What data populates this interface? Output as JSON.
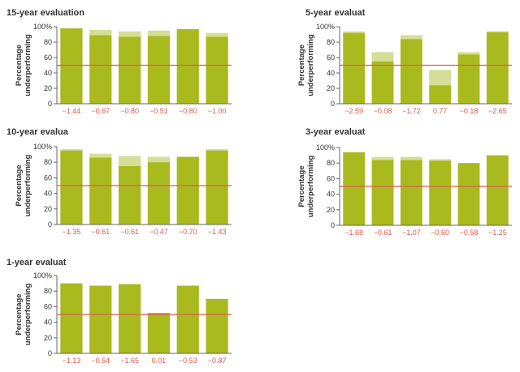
{
  "colors": {
    "bar_primary": "#a9ba1e",
    "bar_secondary": "#d4de96",
    "reference_line": "#e8574a",
    "axis": "#666666",
    "x_tick_text": "#e05a4e"
  },
  "chart_data": [
    {
      "type": "bar",
      "title": "15-year evaluation",
      "ylabel": "Percentage underperforming",
      "ylim": [
        0,
        100
      ],
      "y_ticks": [
        "0",
        "20",
        "40",
        "60",
        "80",
        "100%"
      ],
      "categories": [
        "−1.44",
        "−0.67",
        "−0.80",
        "−0.51",
        "−0.80",
        "−1.00"
      ],
      "series": [
        {
          "values": [
            98,
            89,
            87,
            88,
            97,
            87
          ]
        },
        {
          "values": [
            98,
            96,
            94,
            95,
            97,
            92
          ]
        }
      ],
      "reference_line": 50,
      "grid": false
    },
    {
      "type": "bar",
      "title": "5-year evaluat",
      "ylabel": "Percentage underperforming",
      "ylim": [
        0,
        100
      ],
      "y_ticks": [
        "0",
        "20",
        "40",
        "60",
        "80",
        "100%"
      ],
      "categories": [
        "−2.59",
        "−0.08",
        "−1.72",
        "0.77",
        "−0.18",
        "−2.65"
      ],
      "series": [
        {
          "values": [
            92,
            55,
            84,
            24,
            64,
            93
          ]
        },
        {
          "values": [
            94,
            67,
            89,
            44,
            67,
            94
          ]
        }
      ],
      "reference_line": 50,
      "grid": false
    },
    {
      "type": "bar",
      "title": "10-year evalua",
      "ylabel": "Percentage underperforming",
      "ylim": [
        0,
        100
      ],
      "y_ticks": [
        "0",
        "20",
        "40",
        "60",
        "80",
        "100%"
      ],
      "categories": [
        "−1.35",
        "−0.61",
        "−0.61",
        "−0.47",
        "−0.70",
        "−1.43"
      ],
      "series": [
        {
          "values": [
            95,
            86,
            75,
            80,
            87,
            95
          ]
        },
        {
          "values": [
            97,
            91,
            88,
            87,
            87,
            97
          ]
        }
      ],
      "reference_line": 50,
      "grid": false
    },
    {
      "type": "bar",
      "title": "3-year evaluat",
      "ylabel": "Percentage underperforming",
      "ylim": [
        0,
        100
      ],
      "y_ticks": [
        "0",
        "20",
        "40",
        "60",
        "80",
        "100%"
      ],
      "categories": [
        "−1.68",
        "−0.61",
        "−1.07",
        "−0.60",
        "−0.58",
        "−1.25"
      ],
      "series": [
        {
          "values": [
            94,
            84,
            84,
            83,
            80,
            90
          ]
        },
        {
          "values": [
            94,
            88,
            88,
            85,
            80,
            90
          ]
        }
      ],
      "reference_line": 50,
      "grid": false
    },
    {
      "type": "bar",
      "title": "1-year evaluat",
      "ylabel": "Percentage underperforming",
      "ylim": [
        0,
        100
      ],
      "y_ticks": [
        "0",
        "20",
        "40",
        "60",
        "80",
        "100%"
      ],
      "categories": [
        "−1.13",
        "−0.54",
        "−1.65",
        "0.01",
        "−0.53",
        "−0.87"
      ],
      "series": [
        {
          "values": [
            90,
            87,
            89,
            52,
            87,
            70
          ]
        },
        {
          "values": [
            90,
            87,
            89,
            52,
            87,
            70
          ]
        }
      ],
      "reference_line": 50,
      "grid": false
    }
  ]
}
